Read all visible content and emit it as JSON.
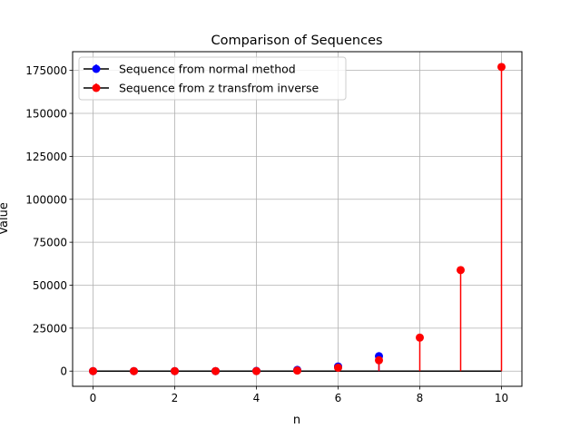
{
  "chart_data": {
    "type": "stem",
    "title": "Comparison of Sequences",
    "xlabel": "n",
    "ylabel": "Value",
    "xlim": [
      -0.5,
      10.5
    ],
    "ylim": [
      -8850,
      185900
    ],
    "xticks": [
      0,
      2,
      4,
      6,
      8,
      10
    ],
    "yticks": [
      0,
      25000,
      50000,
      75000,
      100000,
      125000,
      150000,
      175000
    ],
    "grid": true,
    "legend_position": "upper-left",
    "x": [
      0,
      1,
      2,
      3,
      4,
      5,
      6,
      7,
      8,
      9,
      10
    ],
    "series": [
      {
        "name": "Sequence from normal method",
        "color": "#0000ff",
        "values": [
          0,
          0,
          0,
          0,
          100,
          700,
          2700,
          8700,
          null,
          null,
          null
        ]
      },
      {
        "name": "Sequence from z transfrom inverse",
        "color": "#ff0000",
        "values": [
          0,
          0,
          0,
          0,
          0,
          300,
          2000,
          6300,
          19500,
          58800,
          177000
        ]
      }
    ],
    "baseline_color": "#000000"
  }
}
